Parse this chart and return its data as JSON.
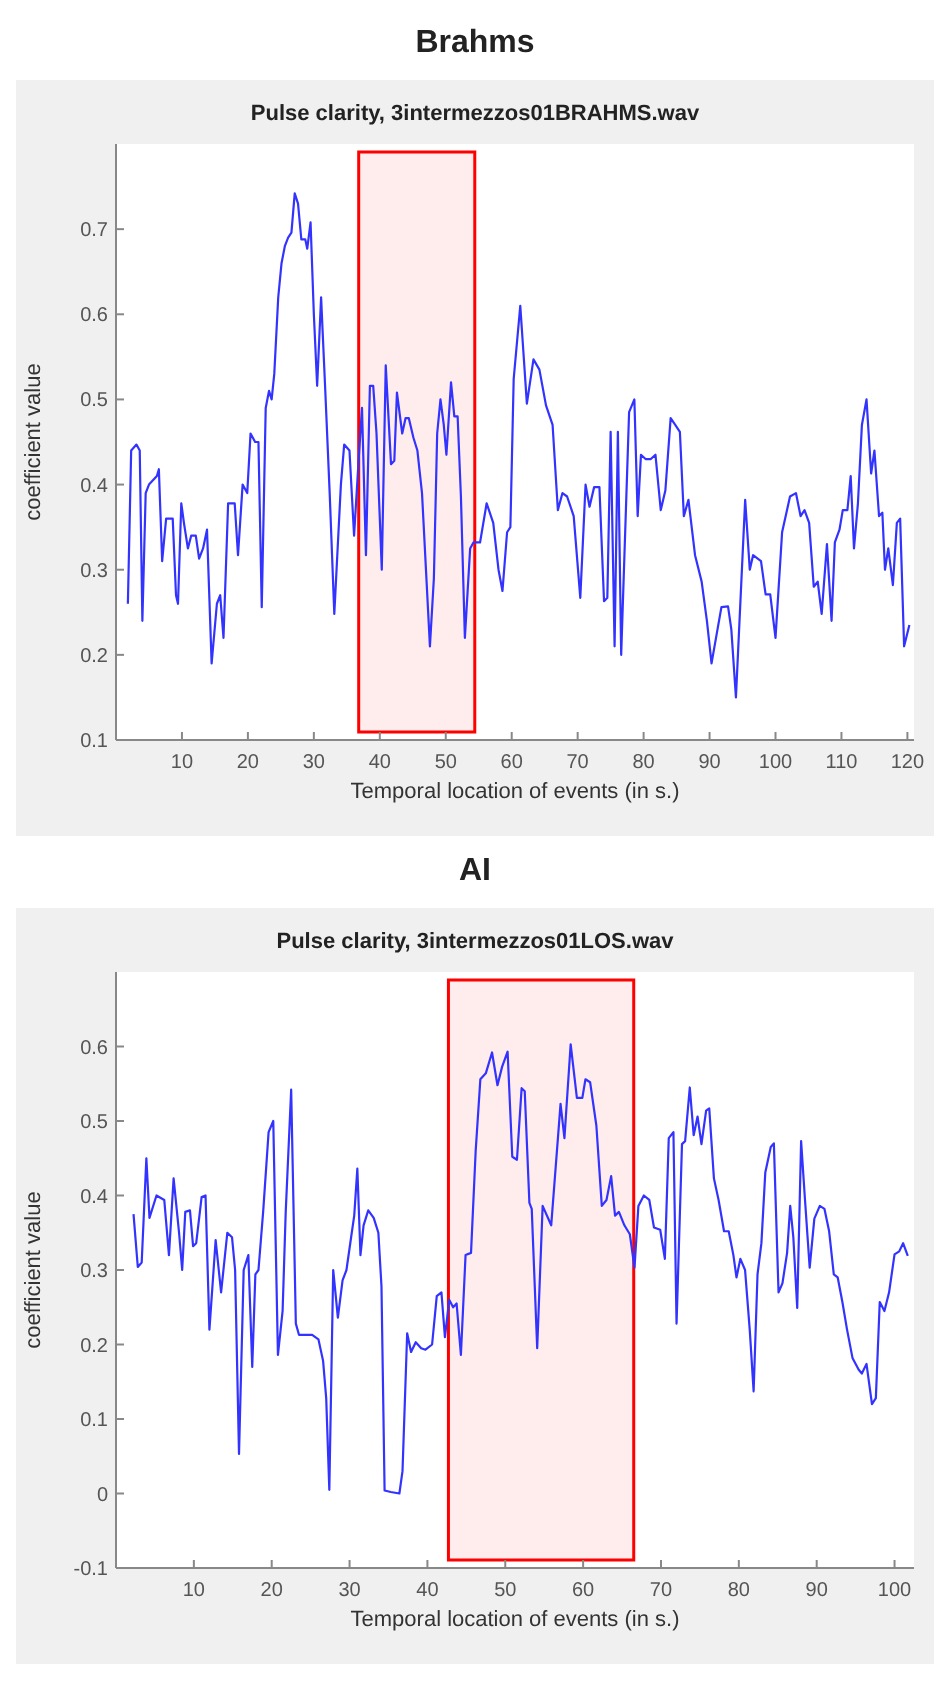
{
  "chart_data": [
    {
      "type": "line",
      "title": "Brahms",
      "subtitle": "Pulse clarity, 3intermezzos01BRAHMS.wav",
      "xlabel": "Temporal location of events (in s.)",
      "ylabel": "coefficient value",
      "xlim": [
        0,
        121
      ],
      "ylim": [
        0.1,
        0.8
      ],
      "xticks": [
        10,
        20,
        30,
        40,
        50,
        60,
        70,
        80,
        90,
        100,
        110,
        120
      ],
      "yticks": [
        0.1,
        0.2,
        0.3,
        0.4,
        0.5,
        0.6,
        0.7
      ],
      "bands": [
        {
          "axis": "x",
          "from": 36.8,
          "to": 54.4,
          "color": "#ff0000"
        }
      ],
      "x": [
        1.8,
        2.3,
        3.1,
        3.6,
        4.0,
        4.5,
        5.0,
        6.2,
        6.5,
        7.0,
        7.6,
        8.6,
        9.1,
        9.4,
        9.9,
        10.3,
        10.9,
        11.4,
        12.1,
        12.6,
        13.2,
        13.8,
        14.5,
        15.3,
        15.8,
        16.3,
        17.0,
        18.0,
        18.5,
        19.2,
        19.9,
        20.4,
        21.1,
        21.6,
        22.1,
        22.7,
        23.2,
        23.6,
        24.0,
        24.6,
        25.1,
        25.6,
        26.1,
        26.6,
        27.1,
        27.6,
        28.1,
        28.7,
        29.0,
        29.5,
        30.0,
        30.5,
        31.1,
        31.7,
        32.4,
        33.1,
        34.1,
        34.6,
        35.4,
        36.1,
        36.8,
        37.3,
        37.9,
        38.5,
        39.0,
        39.5,
        40.3,
        40.9,
        41.7,
        42.2,
        42.6,
        43.4,
        43.9,
        44.4,
        45.1,
        45.7,
        46.4,
        47.6,
        48.2,
        48.7,
        49.2,
        49.7,
        50.1,
        50.8,
        51.3,
        51.8,
        52.3,
        52.9,
        53.7,
        54.2,
        55.2,
        56.2,
        57.2,
        58.0,
        58.6,
        59.3,
        59.8,
        60.3,
        61.3,
        62.3,
        63.3,
        64.2,
        65.2,
        66.2,
        67.0,
        67.7,
        68.4,
        69.4,
        70.4,
        71.2,
        71.8,
        72.5,
        73.3,
        74.0,
        74.5,
        75.0,
        75.6,
        76.1,
        76.6,
        77.8,
        78.6,
        79.1,
        79.6,
        80.3,
        81.1,
        81.8,
        82.6,
        83.3,
        84.1,
        84.8,
        85.5,
        86.1,
        86.8,
        87.8,
        88.8,
        89.6,
        90.3,
        91.8,
        92.8,
        93.3,
        94.0,
        95.4,
        96.1,
        96.6,
        97.8,
        98.5,
        99.2,
        100.0,
        101.0,
        102.2,
        103.1,
        103.8,
        104.4,
        105.1,
        105.8,
        106.4,
        107.0,
        107.8,
        108.5,
        109.0,
        109.7,
        110.2,
        110.9,
        111.4,
        111.9,
        112.5,
        113.1,
        113.8,
        114.5,
        115.0,
        115.7,
        116.2,
        116.6,
        117.1,
        117.8,
        118.4,
        118.9,
        119.5,
        120.3
      ],
      "series": [
        {
          "color": "#3333ff",
          "values": [
            0.26,
            0.44,
            0.447,
            0.44,
            0.24,
            0.39,
            0.4,
            0.41,
            0.418,
            0.31,
            0.36,
            0.36,
            0.27,
            0.26,
            0.378,
            0.355,
            0.325,
            0.34,
            0.34,
            0.313,
            0.325,
            0.347,
            0.19,
            0.26,
            0.27,
            0.22,
            0.378,
            0.378,
            0.317,
            0.4,
            0.39,
            0.46,
            0.45,
            0.45,
            0.256,
            0.49,
            0.51,
            0.5,
            0.53,
            0.62,
            0.66,
            0.68,
            0.69,
            0.696,
            0.742,
            0.73,
            0.688,
            0.688,
            0.677,
            0.708,
            0.6,
            0.516,
            0.62,
            0.516,
            0.39,
            0.248,
            0.4,
            0.447,
            0.44,
            0.34,
            0.43,
            0.49,
            0.317,
            0.516,
            0.516,
            0.46,
            0.3,
            0.54,
            0.424,
            0.428,
            0.508,
            0.46,
            0.478,
            0.478,
            0.455,
            0.44,
            0.39,
            0.21,
            0.29,
            0.46,
            0.5,
            0.47,
            0.435,
            0.52,
            0.48,
            0.48,
            0.386,
            0.22,
            0.325,
            0.332,
            0.332,
            0.378,
            0.355,
            0.3,
            0.275,
            0.344,
            0.35,
            0.524,
            0.61,
            0.495,
            0.547,
            0.535,
            0.493,
            0.47,
            0.37,
            0.39,
            0.386,
            0.363,
            0.267,
            0.4,
            0.374,
            0.397,
            0.397,
            0.263,
            0.267,
            0.462,
            0.21,
            0.462,
            0.2,
            0.485,
            0.5,
            0.363,
            0.435,
            0.43,
            0.43,
            0.435,
            0.37,
            0.393,
            0.478,
            0.47,
            0.462,
            0.363,
            0.382,
            0.317,
            0.286,
            0.24,
            0.19,
            0.256,
            0.257,
            0.23,
            0.15,
            0.382,
            0.3,
            0.317,
            0.31,
            0.271,
            0.271,
            0.22,
            0.344,
            0.386,
            0.39,
            0.363,
            0.37,
            0.355,
            0.28,
            0.286,
            0.248,
            0.33,
            0.24,
            0.332,
            0.347,
            0.37,
            0.37,
            0.41,
            0.325,
            0.378,
            0.47,
            0.5,
            0.413,
            0.44,
            0.363,
            0.367,
            0.3,
            0.325,
            0.282,
            0.355,
            0.36,
            0.21,
            0.235
          ]
        }
      ]
    },
    {
      "type": "line",
      "title": "AI",
      "subtitle": "Pulse clarity, 3intermezzos01LOS.wav",
      "xlabel": "Temporal location of events (in s.)",
      "ylabel": "coefficient value",
      "xlim": [
        0,
        102.5
      ],
      "ylim": [
        -0.1,
        0.7
      ],
      "xticks": [
        10,
        20,
        30,
        40,
        50,
        60,
        70,
        80,
        90,
        100
      ],
      "yticks": [
        -0.1,
        0,
        0.1,
        0.2,
        0.3,
        0.4,
        0.5,
        0.6
      ],
      "bands": [
        {
          "axis": "x",
          "from": 42.7,
          "to": 66.5,
          "color": "#ff0000"
        }
      ],
      "x": [
        2.25,
        2.8,
        3.3,
        3.9,
        4.3,
        5.2,
        6.2,
        6.8,
        7.4,
        8.1,
        8.5,
        8.9,
        9.5,
        9.9,
        10.3,
        11.0,
        11.5,
        12.0,
        12.8,
        13.5,
        14.3,
        14.9,
        15.3,
        15.8,
        16.4,
        17.0,
        17.5,
        17.9,
        18.3,
        18.9,
        19.6,
        20.2,
        20.8,
        21.4,
        21.8,
        22.5,
        23.1,
        23.5,
        25.2,
        26.0,
        26.6,
        27.0,
        27.4,
        27.9,
        28.5,
        29.1,
        29.6,
        30.2,
        30.6,
        31.0,
        31.4,
        31.8,
        32.4,
        33.1,
        33.7,
        34.1,
        34.5,
        35.3,
        36.4,
        36.8,
        37.4,
        37.9,
        38.5,
        39.2,
        39.75,
        40.6,
        41.2,
        41.8,
        42.25,
        42.8,
        43.3,
        43.75,
        44.3,
        44.9,
        45.6,
        46.2,
        46.8,
        47.5,
        48.3,
        49.0,
        49.6,
        50.3,
        50.9,
        51.5,
        52.1,
        52.5,
        53.1,
        53.4,
        54.1,
        54.8,
        55.9,
        57.1,
        57.6,
        58.4,
        59.2,
        59.9,
        60.3,
        60.9,
        61.7,
        62.4,
        63.0,
        63.6,
        64.1,
        64.6,
        65.3,
        66.0,
        66.6,
        67.1,
        67.8,
        68.5,
        69.1,
        69.9,
        70.5,
        71.0,
        71.6,
        72.0,
        72.7,
        73.1,
        73.7,
        74.2,
        74.7,
        75.2,
        75.8,
        76.2,
        76.8,
        77.4,
        78.1,
        78.7,
        79.3,
        79.7,
        80.2,
        80.8,
        81.4,
        81.9,
        82.4,
        82.9,
        83.4,
        84.1,
        84.5,
        85.1,
        85.6,
        86.2,
        86.6,
        87.0,
        87.5,
        88.0,
        88.5,
        89.1,
        89.7,
        90.4,
        91.0,
        91.6,
        92.2,
        92.7,
        93.3,
        93.9,
        94.6,
        95.4,
        95.8,
        96.4,
        97.1,
        97.6,
        98.1,
        98.7,
        99.3,
        100.0,
        100.6,
        101.1,
        101.7
      ],
      "series": [
        {
          "color": "#3333ff",
          "values": [
            0.375,
            0.304,
            0.31,
            0.45,
            0.37,
            0.4,
            0.394,
            0.32,
            0.423,
            0.35,
            0.3,
            0.378,
            0.38,
            0.332,
            0.336,
            0.398,
            0.4,
            0.22,
            0.34,
            0.27,
            0.35,
            0.344,
            0.3,
            0.053,
            0.3,
            0.32,
            0.17,
            0.294,
            0.3,
            0.378,
            0.485,
            0.5,
            0.186,
            0.245,
            0.378,
            0.542,
            0.228,
            0.213,
            0.213,
            0.207,
            0.178,
            0.128,
            0.005,
            0.3,
            0.236,
            0.286,
            0.3,
            0.344,
            0.373,
            0.436,
            0.32,
            0.36,
            0.38,
            0.37,
            0.35,
            0.278,
            0.004,
            0.002,
            0.0,
            0.03,
            0.215,
            0.19,
            0.203,
            0.195,
            0.193,
            0.2,
            0.265,
            0.27,
            0.21,
            0.26,
            0.25,
            0.255,
            0.186,
            0.32,
            0.323,
            0.46,
            0.556,
            0.564,
            0.592,
            0.548,
            0.573,
            0.593,
            0.452,
            0.448,
            0.544,
            0.54,
            0.39,
            0.382,
            0.195,
            0.386,
            0.36,
            0.523,
            0.477,
            0.603,
            0.531,
            0.531,
            0.556,
            0.552,
            0.494,
            0.386,
            0.394,
            0.426,
            0.373,
            0.378,
            0.36,
            0.348,
            0.303,
            0.386,
            0.4,
            0.394,
            0.357,
            0.354,
            0.315,
            0.477,
            0.485,
            0.228,
            0.469,
            0.473,
            0.545,
            0.481,
            0.506,
            0.469,
            0.514,
            0.517,
            0.423,
            0.394,
            0.352,
            0.352,
            0.32,
            0.29,
            0.315,
            0.3,
            0.22,
            0.137,
            0.294,
            0.336,
            0.431,
            0.465,
            0.47,
            0.27,
            0.282,
            0.323,
            0.386,
            0.344,
            0.249,
            0.473,
            0.394,
            0.303,
            0.369,
            0.386,
            0.382,
            0.352,
            0.294,
            0.29,
            0.257,
            0.22,
            0.182,
            0.166,
            0.161,
            0.174,
            0.12,
            0.128,
            0.257,
            0.245,
            0.27,
            0.321,
            0.325,
            0.336,
            0.319
          ]
        }
      ]
    }
  ]
}
